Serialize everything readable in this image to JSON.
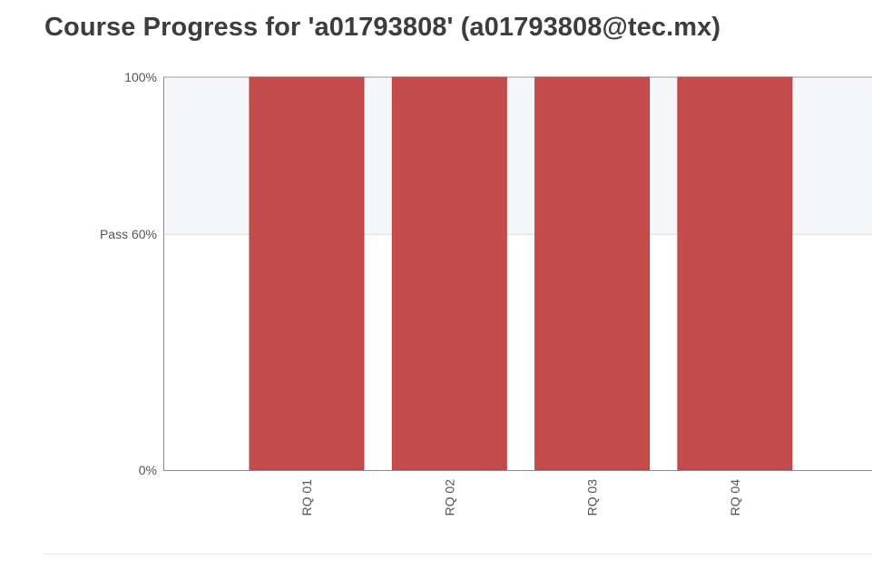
{
  "page": {
    "title": "Course Progress for 'a01793808' (a01793808@tec.mx)"
  },
  "chart_data": {
    "type": "bar",
    "categories": [
      "RQ 01",
      "RQ 02",
      "RQ 03",
      "RQ 04"
    ],
    "values": [
      100,
      100,
      100,
      100
    ],
    "ylim": [
      0,
      100
    ],
    "y_ticks": [
      {
        "value": 100,
        "label": "100%"
      },
      {
        "value": 60,
        "label": "Pass 60%"
      },
      {
        "value": 0,
        "label": "0%"
      }
    ],
    "pass_threshold": 60,
    "bar_color": "#c44c4c",
    "pass_band_color": "#f6f7fa",
    "grid": true
  }
}
